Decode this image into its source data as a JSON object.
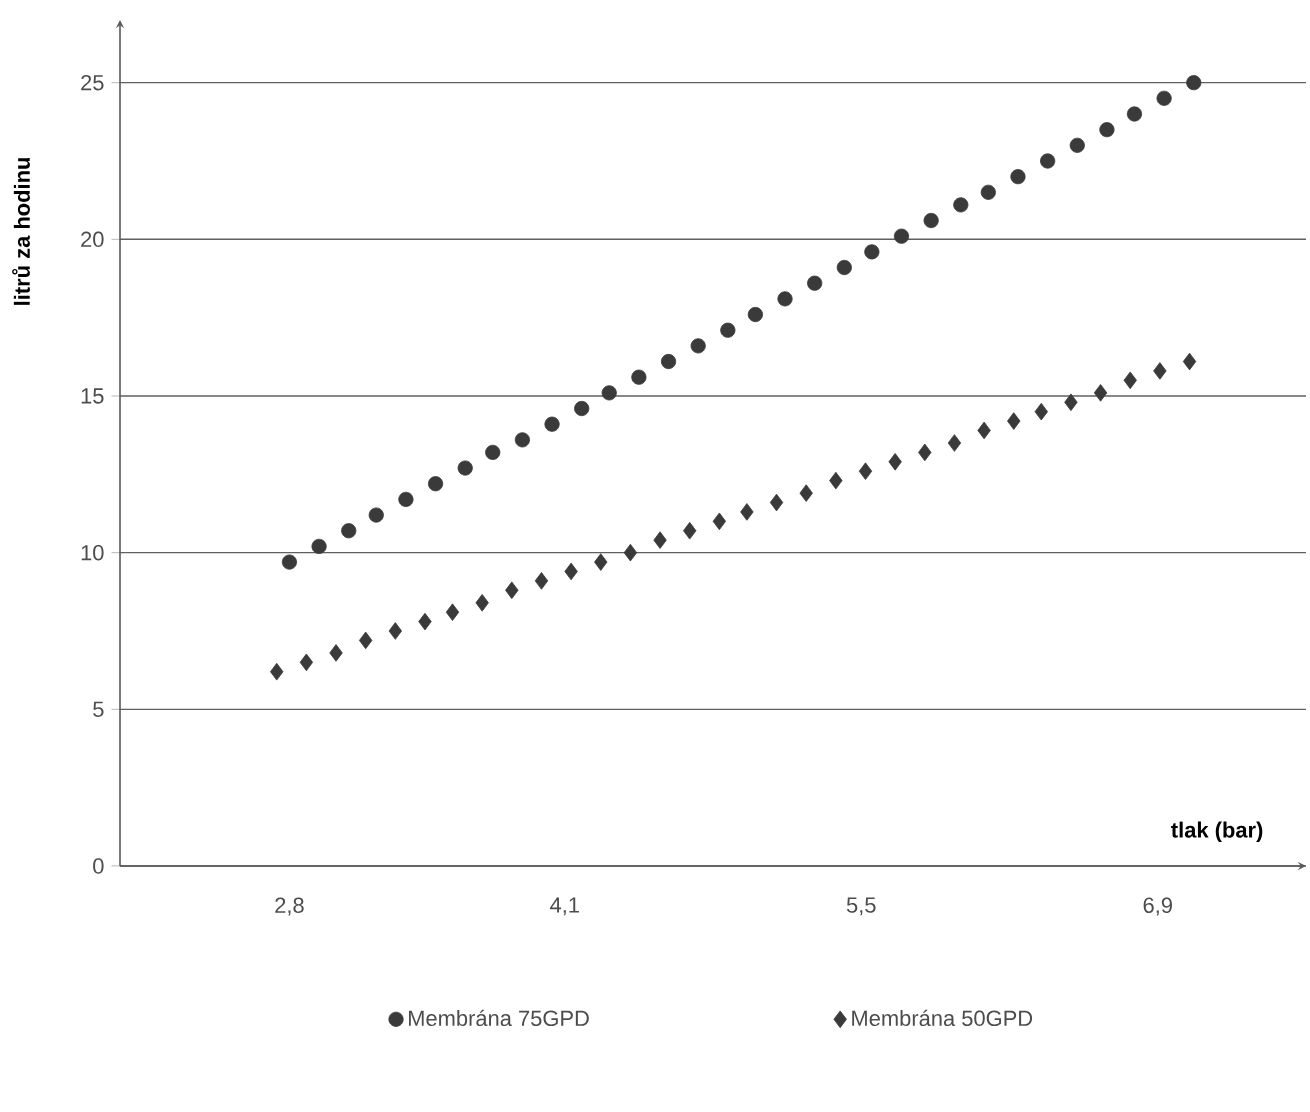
{
  "chart_data": {
    "type": "scatter",
    "xlabel": "tlak (bar)",
    "ylabel": "litrů za hodinu",
    "xlim": [
      2.0,
      7.6
    ],
    "ylim": [
      0,
      27
    ],
    "xticks": [
      {
        "value": 2.8,
        "label": "2,8"
      },
      {
        "value": 4.1,
        "label": "4,1"
      },
      {
        "value": 5.5,
        "label": "5,5"
      },
      {
        "value": 6.9,
        "label": "6,9"
      }
    ],
    "yticks": [
      0,
      5,
      10,
      15,
      20,
      25
    ],
    "grid": "y",
    "legend": "bottom",
    "series": [
      {
        "name": "Membrána 75GPD",
        "color": "#3a3a3a",
        "marker": "circle",
        "x": [
          2.8,
          2.94,
          3.08,
          3.21,
          3.35,
          3.49,
          3.63,
          3.76,
          3.9,
          4.04,
          4.18,
          4.31,
          4.45,
          4.59,
          4.73,
          4.87,
          5.0,
          5.14,
          5.28,
          5.42,
          5.55,
          5.69,
          5.83,
          5.97,
          6.1,
          6.24,
          6.38,
          6.52,
          6.66,
          6.79,
          6.93,
          7.07
        ],
        "values": [
          9.7,
          10.2,
          10.7,
          11.2,
          11.7,
          12.2,
          12.7,
          13.2,
          13.6,
          14.1,
          14.6,
          15.1,
          15.6,
          16.1,
          16.6,
          17.1,
          17.6,
          18.1,
          18.6,
          19.1,
          19.6,
          20.1,
          20.6,
          21.1,
          21.5,
          22.0,
          22.5,
          23.0,
          23.5,
          24.0,
          24.5,
          25.0
        ]
      },
      {
        "name": "Membrána 50GPD",
        "color": "#3a3a3a",
        "marker": "diamond",
        "x": [
          2.74,
          2.88,
          3.02,
          3.16,
          3.3,
          3.44,
          3.57,
          3.71,
          3.85,
          3.99,
          4.13,
          4.27,
          4.41,
          4.55,
          4.69,
          4.83,
          4.96,
          5.1,
          5.24,
          5.38,
          5.52,
          5.66,
          5.8,
          5.94,
          6.08,
          6.22,
          6.35,
          6.49,
          6.63,
          6.77,
          6.91,
          7.05
        ],
        "values": [
          6.2,
          6.5,
          6.8,
          7.2,
          7.5,
          7.8,
          8.1,
          8.4,
          8.8,
          9.1,
          9.4,
          9.7,
          10.0,
          10.4,
          10.7,
          11.0,
          11.3,
          11.6,
          11.9,
          12.3,
          12.6,
          12.9,
          13.2,
          13.5,
          13.9,
          14.2,
          14.5,
          14.8,
          15.1,
          15.5,
          15.8,
          16.1
        ]
      }
    ]
  }
}
